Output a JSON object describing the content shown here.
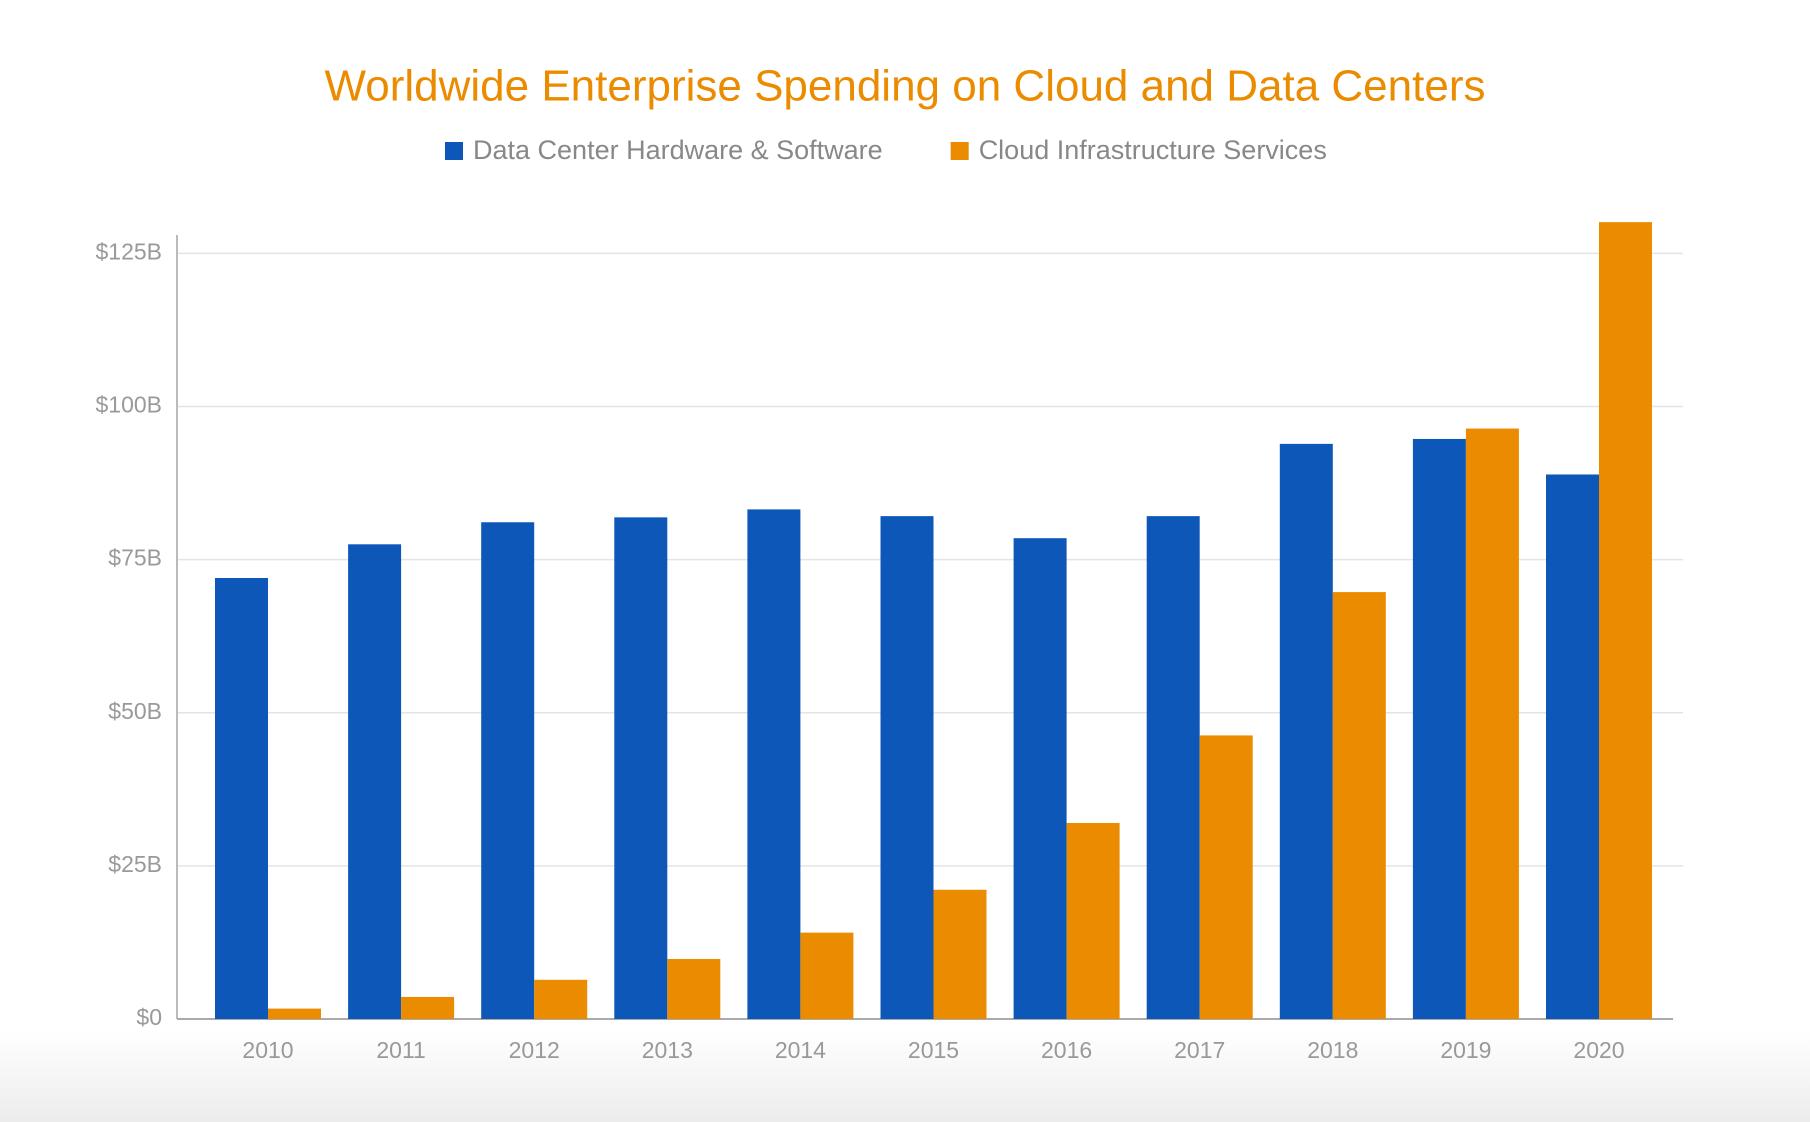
{
  "chart_data": {
    "type": "bar",
    "title": "Worldwide Enterprise Spending on Cloud and Data Centers",
    "categories": [
      "2010",
      "2011",
      "2012",
      "2013",
      "2014",
      "2015",
      "2016",
      "2017",
      "2018",
      "2019",
      "2020"
    ],
    "series": [
      {
        "name": "Data Center Hardware & Software",
        "color": "#0d57b8",
        "values": [
          72,
          77.5,
          81.1,
          81.9,
          83.2,
          82.1,
          78.5,
          82.1,
          93.9,
          94.7,
          88.9
        ]
      },
      {
        "name": "Cloud Infrastructure Services",
        "color": "#ea8b00",
        "values": [
          1.7,
          3.6,
          6.4,
          9.8,
          14.1,
          21.1,
          32.0,
          46.3,
          69.7,
          96.4,
          130.1
        ]
      }
    ],
    "ylim": [
      0,
      128
    ],
    "yticks": [
      {
        "value": 0,
        "label": "$0"
      },
      {
        "value": 25,
        "label": "$25B"
      },
      {
        "value": 50,
        "label": "$50B"
      },
      {
        "value": 75,
        "label": "$75B"
      },
      {
        "value": 100,
        "label": "$100B"
      },
      {
        "value": 125,
        "label": "$125B"
      }
    ],
    "grid": true
  }
}
